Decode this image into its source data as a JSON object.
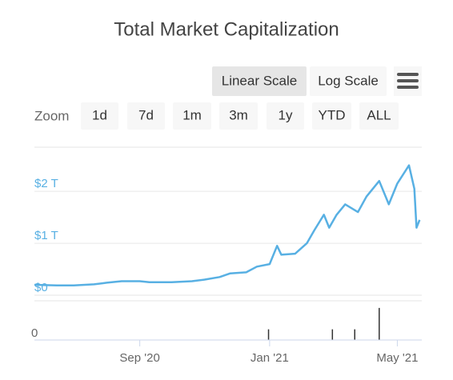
{
  "toolbar": {
    "scale_buttons": [
      "Linear Scale",
      "Log Scale"
    ],
    "zoom_label": "Zoom",
    "zoom_buttons": [
      "1d",
      "7d",
      "1m",
      "3m",
      "1y",
      "YTD",
      "ALL"
    ]
  },
  "chart_data": {
    "type": "line",
    "title": "Total Market Capitalization",
    "xlim": [
      "2020-05-25",
      "2021-05-24"
    ],
    "xticks": [
      {
        "value": "2020-09-01",
        "label": "Sep '20"
      },
      {
        "value": "2021-01-01",
        "label": "Jan '21"
      },
      {
        "value": "2021-05-01",
        "label": "May '21"
      }
    ],
    "ylim": [
      0,
      2.85
    ],
    "yticks": [
      {
        "value": 0,
        "label": "$0"
      },
      {
        "value": 1,
        "label": "$1 T"
      },
      {
        "value": 2,
        "label": "$2 T"
      }
    ],
    "grid": true,
    "series": [
      {
        "color": "#58b0e3",
        "x": [
          "2020-05-25",
          "2020-06-15",
          "2020-07-01",
          "2020-07-20",
          "2020-08-01",
          "2020-08-15",
          "2020-09-01",
          "2020-09-10",
          "2020-10-01",
          "2020-10-20",
          "2020-11-01",
          "2020-11-15",
          "2020-11-25",
          "2020-12-10",
          "2020-12-20",
          "2021-01-01",
          "2021-01-08",
          "2021-01-12",
          "2021-01-25",
          "2021-02-05",
          "2021-02-12",
          "2021-02-21",
          "2021-02-26",
          "2021-03-05",
          "2021-03-13",
          "2021-03-25",
          "2021-04-02",
          "2021-04-14",
          "2021-04-23",
          "2021-05-01",
          "2021-05-12",
          "2021-05-17",
          "2021-05-19",
          "2021-05-22"
        ],
        "values": [
          0.2,
          0.19,
          0.19,
          0.21,
          0.24,
          0.27,
          0.27,
          0.25,
          0.25,
          0.27,
          0.3,
          0.35,
          0.42,
          0.44,
          0.55,
          0.6,
          0.95,
          0.78,
          0.8,
          1.0,
          1.25,
          1.55,
          1.3,
          1.55,
          1.75,
          1.6,
          1.9,
          2.2,
          1.75,
          2.15,
          2.5,
          2.05,
          1.3,
          1.45
        ]
      }
    ],
    "volume": {
      "x": [
        "2020-12-31",
        "2021-03-01",
        "2021-03-22",
        "2021-04-14"
      ],
      "values": [
        15,
        15,
        15,
        45
      ],
      "ylim": [
        0,
        55
      ],
      "yticks": [
        0
      ],
      "color": "#333333"
    }
  }
}
